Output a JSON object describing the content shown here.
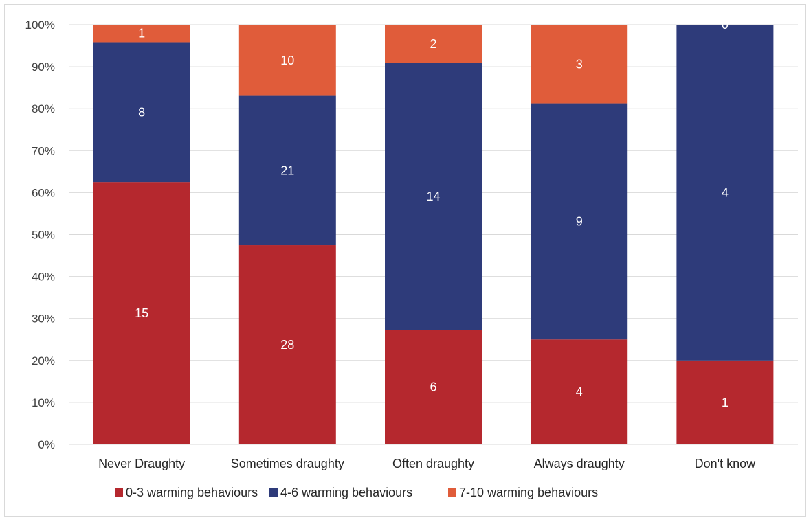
{
  "chart_data": {
    "type": "bar",
    "stacked": true,
    "normalized_percent": true,
    "categories": [
      "Never Draughty",
      "Sometimes draughty",
      "Often draughty",
      "Always draughty",
      "Don't know"
    ],
    "series": [
      {
        "name": "0-3 warming behaviours",
        "color": "#b5282e",
        "values": [
          15,
          28,
          6,
          4,
          1
        ]
      },
      {
        "name": "4-6 warming behaviours",
        "color": "#2e3b7a",
        "values": [
          8,
          21,
          14,
          9,
          4
        ]
      },
      {
        "name": "7-10 warming behaviours",
        "color": "#e05c3a",
        "values": [
          1,
          10,
          2,
          3,
          0
        ]
      }
    ],
    "title": "",
    "xlabel": "",
    "ylabel": "",
    "ylim": [
      0,
      100
    ],
    "yticks": [
      "0%",
      "10%",
      "20%",
      "30%",
      "40%",
      "50%",
      "60%",
      "70%",
      "80%",
      "90%",
      "100%"
    ],
    "grid": true,
    "legend_position": "bottom"
  }
}
